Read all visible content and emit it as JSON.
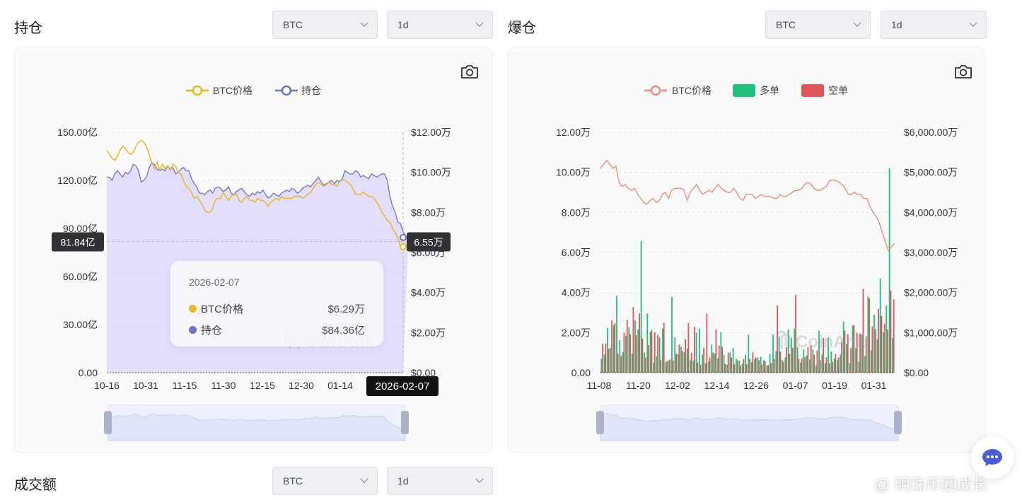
{
  "sections": {
    "oi": {
      "title": "持仓",
      "coin": "BTC",
      "interval": "1d"
    },
    "liq": {
      "title": "爆仓",
      "coin": "BTC",
      "interval": "1d"
    },
    "volume": {
      "title": "成交额",
      "coin": "BTC",
      "interval": "1d"
    }
  },
  "watermark": "CoinAnk",
  "corner_watermark": "@ 明珠币圈成长",
  "colors": {
    "price_gold": "#e5b82a",
    "oi_purple": "#6c74c9",
    "oi_fill": "#ddd8fa",
    "liq_price": "#e8917a",
    "long_green": "#22c07c",
    "short_red": "#e0545a"
  },
  "chart_data": [
    {
      "type": "line",
      "title": "",
      "legend": {
        "position": "top-center",
        "items": [
          "BTC价格",
          "持仓"
        ]
      },
      "x_ticks": [
        "10-16",
        "10-31",
        "11-15",
        "11-30",
        "12-15",
        "12-30",
        "01-14",
        "02-07"
      ],
      "y_left": {
        "ticks": [
          "0.00",
          "30.00亿",
          "60.00亿",
          "90.00亿",
          "120.00亿",
          "150.00亿"
        ],
        "range": [
          0,
          150
        ]
      },
      "y_right": {
        "ticks": [
          "$0.00",
          "$2.00万",
          "$4.00万",
          "$6.00万",
          "$8.00万",
          "$10.00万",
          "$12.00万"
        ],
        "range": [
          0,
          12
        ]
      },
      "grid": true,
      "series": [
        {
          "name": "BTC价格",
          "unit": "万 USD",
          "values": [
            11.1,
            10.9,
            10.7,
            10.6,
            10.8,
            11.1,
            11.3,
            11.2,
            11.0,
            10.9,
            11.0,
            11.3,
            11.5,
            11.6,
            11.5,
            11.3,
            10.9,
            10.5,
            10.2,
            10.5,
            10.1,
            10.4,
            10.2,
            10.3,
            10.1,
            10.4,
            10.3,
            10.0,
            9.9,
            9.6,
            9.3,
            9.2,
            9.0,
            8.7,
            8.8,
            8.6,
            8.4,
            8.1,
            8.0,
            8.0,
            8.2,
            8.6,
            8.7,
            8.7,
            9.0,
            8.8,
            8.6,
            8.8,
            8.9,
            8.9,
            8.6,
            8.5,
            8.7,
            8.8,
            8.6,
            8.6,
            8.5,
            8.7,
            8.6,
            8.6,
            8.5,
            8.3,
            8.5,
            8.6,
            8.7,
            8.6,
            8.8,
            8.7,
            8.7,
            8.7,
            8.7,
            8.8,
            8.8,
            8.8,
            8.7,
            8.8,
            8.9,
            9.0,
            9.2,
            9.4,
            9.5,
            9.4,
            9.3,
            9.4,
            9.5,
            9.4,
            9.4,
            9.3,
            9.6,
            9.6,
            9.6,
            9.5,
            9.4,
            9.2,
            8.9,
            8.9,
            8.9,
            9.0,
            8.9,
            8.8,
            8.8,
            8.7,
            8.5,
            8.3,
            8.0,
            7.8,
            7.6,
            7.5,
            7.2,
            7.0,
            6.7,
            6.3,
            6.29
          ]
        },
        {
          "name": "持仓",
          "unit": "亿 USD",
          "values": [
            122,
            122,
            120,
            124,
            126,
            124,
            122,
            125,
            124,
            126,
            130,
            129,
            126,
            119,
            120,
            122,
            128,
            131,
            130,
            127,
            126,
            127,
            126,
            129,
            127,
            128,
            124,
            125,
            127,
            128,
            126,
            126,
            121,
            118,
            116,
            112,
            112,
            111,
            113,
            114,
            112,
            115,
            116,
            115,
            113,
            114,
            116,
            112,
            111,
            113,
            114,
            115,
            113,
            111,
            110,
            112,
            111,
            113,
            112,
            114,
            111,
            109,
            110,
            112,
            111,
            110,
            112,
            113,
            114,
            113,
            115,
            114,
            112,
            113,
            115,
            116,
            117,
            116,
            118,
            120,
            122,
            119,
            117,
            118,
            119,
            120,
            118,
            120,
            119,
            121,
            126,
            125,
            124,
            124,
            126,
            125,
            122,
            123,
            122,
            121,
            124,
            123,
            122,
            123,
            124,
            124,
            120,
            110,
            104,
            100,
            94,
            93,
            88,
            85,
            84.36
          ]
        }
      ],
      "crosshair": {
        "date": "2026-02-07",
        "left_value": "81.84亿",
        "right_value": "6.55万"
      },
      "tooltip": {
        "date": "2026-02-07",
        "rows": [
          {
            "name": "BTC价格",
            "value": "$6.29万"
          },
          {
            "name": "持仓",
            "value": "$84.36亿"
          }
        ]
      }
    },
    {
      "type": "bar",
      "title": "",
      "legend": {
        "position": "top-center",
        "items": [
          "BTC价格",
          "多单",
          "空单"
        ]
      },
      "x_ticks": [
        "11-08",
        "11-20",
        "12-02",
        "12-14",
        "12-26",
        "01-07",
        "01-19",
        "01-31"
      ],
      "y_left": {
        "ticks": [
          "0.00",
          "2.00万",
          "4.00万",
          "6.00万",
          "8.00万",
          "10.00万",
          "12.00万"
        ],
        "range": [
          0,
          12
        ]
      },
      "y_right": {
        "ticks": [
          "$0.00",
          "$1,000.00万",
          "$2,000.00万",
          "$3,000.00万",
          "$4,000.00万",
          "$5,000.00万",
          "$6,000.00万"
        ],
        "range": [
          0,
          6000
        ]
      },
      "grid": true,
      "series": [
        {
          "name": "BTC价格",
          "type": "line",
          "unit": "万 USD",
          "values": [
            10.2,
            10.4,
            10.6,
            10.4,
            10.2,
            10.3,
            9.5,
            9.3,
            9.4,
            9.2,
            9.1,
            9.2,
            8.9,
            8.7,
            8.5,
            8.4,
            8.6,
            8.7,
            8.5,
            8.6,
            8.9,
            9.0,
            8.7,
            9.1,
            9.2,
            9.2,
            9.2,
            9.1,
            8.6,
            9.0,
            9.2,
            9.4,
            9.1,
            8.9,
            9.0,
            9.1,
            9.0,
            9.2,
            9.4,
            9.2,
            9.1,
            9.0,
            9.0,
            9.2,
            9.0,
            8.7,
            8.6,
            8.9,
            8.9,
            8.9,
            8.7,
            8.8,
            8.9,
            8.8,
            8.8,
            8.8,
            8.7,
            8.7,
            8.9,
            8.8,
            8.8,
            8.9,
            9.0,
            9.1,
            9.1,
            9.2,
            9.4,
            9.5,
            9.4,
            9.2,
            9.1,
            9.1,
            9.2,
            9.3,
            9.6,
            9.6,
            9.6,
            9.5,
            9.4,
            9.2,
            8.9,
            8.9,
            9.0,
            8.9,
            8.9,
            8.7,
            8.7,
            8.3,
            8.0,
            7.8,
            7.5,
            7.0,
            6.5,
            6.1,
            6.3,
            6.45
          ]
        },
        {
          "name": "多单",
          "unit": "万 USD",
          "values": [
            350,
            450,
            1120,
            620,
            1180,
            1920,
            810,
            520,
            920,
            1130,
            480,
            1310,
            1080,
            3290,
            500,
            1480,
            1020,
            250,
            410,
            880,
            1100,
            260,
            310,
            1890,
            880,
            460,
            650,
            510,
            600,
            310,
            300,
            1000,
            1100,
            450,
            230,
            280,
            700,
            480,
            360,
            1010,
            450,
            200,
            510,
            620,
            350,
            300,
            220,
            450,
            950,
            260,
            350,
            380,
            400,
            310,
            180,
            470,
            950,
            540,
            900,
            320,
            380,
            1080,
            870,
            1100,
            640,
            250,
            580,
            430,
            330,
            580,
            180,
            1050,
            450,
            240,
            880,
            530,
            350,
            310,
            450,
            1280,
            720,
            240,
            1180,
            610,
            270,
            950,
            420,
            1900,
            560,
            1450,
            830,
            2350,
            1010,
            1680,
            5100,
            860
          ]
        },
        {
          "name": "空单",
          "unit": "万 USD",
          "values": [
            720,
            730,
            600,
            1300,
            1240,
            480,
            420,
            990,
            1320,
            960,
            1640,
            940,
            1480,
            850,
            380,
            690,
            1070,
            1010,
            940,
            310,
            1240,
            290,
            330,
            300,
            480,
            700,
            550,
            840,
            1240,
            490,
            1150,
            250,
            200,
            620,
            1470,
            380,
            500,
            1080,
            680,
            650,
            220,
            500,
            380,
            210,
            310,
            180,
            340,
            210,
            340,
            510,
            380,
            310,
            200,
            290,
            190,
            240,
            340,
            1680,
            530,
            270,
            640,
            470,
            620,
            1940,
            350,
            360,
            390,
            640,
            680,
            450,
            560,
            310,
            870,
            380,
            240,
            270,
            460,
            380,
            770,
            1050,
            960,
            620,
            1180,
            990,
            980,
            2090,
            910,
            1850,
            1150,
            1090,
            1590,
            1420,
            1220,
            1080,
            2050,
            1830
          ]
        }
      ]
    }
  ]
}
